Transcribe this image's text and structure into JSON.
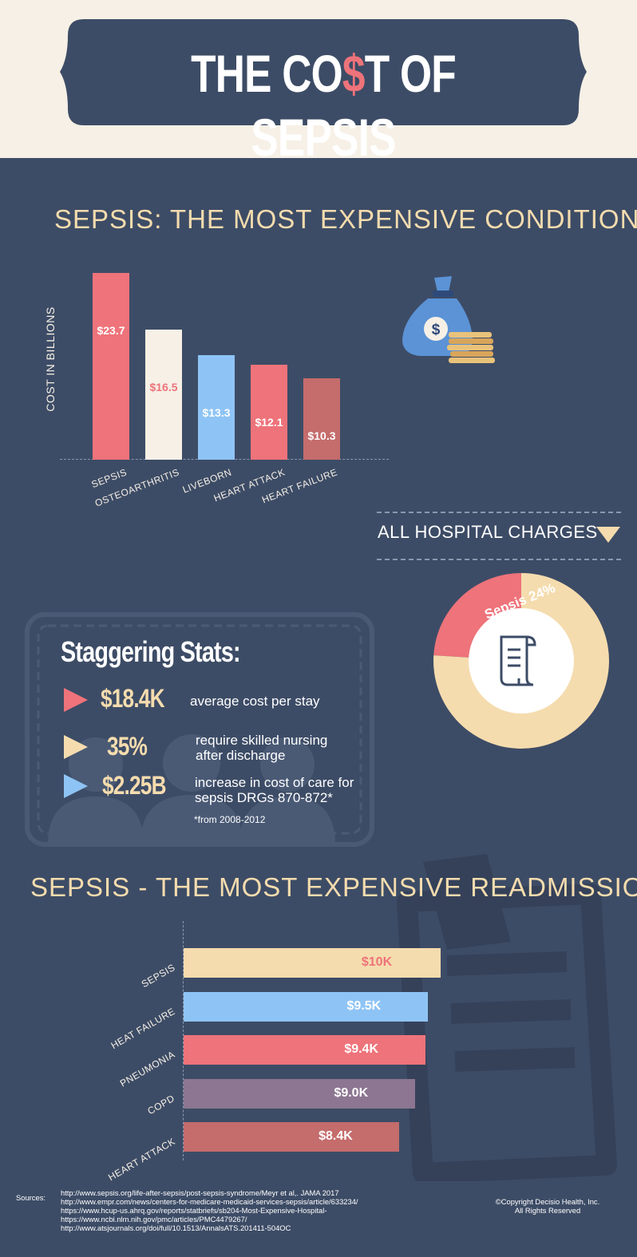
{
  "title": {
    "prefix": "THE CO",
    "symbol": "$",
    "suffix": "T OF SEPSIS"
  },
  "section_conditions": {
    "heading": "SEPSIS:  THE MOST EXPENSIVE CONDITION"
  },
  "hospital_charges": {
    "heading": "ALL HOSPITAL CHARGES"
  },
  "staggering_stats": {
    "heading": "Staggering Stats:",
    "items": [
      {
        "value": "$18.4K",
        "desc_line1": "average cost per stay",
        "desc_line2": ""
      },
      {
        "value": "35%",
        "desc_line1": "require skilled nursing",
        "desc_line2": "after discharge"
      },
      {
        "value": "$2.25B",
        "desc_line1": "increase in cost of care for",
        "desc_line2": "sepsis DRGs 870-872*"
      }
    ],
    "footnote": "*from 2008-2012"
  },
  "section_readmission": {
    "heading": "SEPSIS - THE MOST EXPENSIVE READMISSION"
  },
  "sources": {
    "label": "Sources:",
    "lines": [
      "http://www.sepsis.org/life-after-sepsis/post-sepsis-syndrome/Meyr et al,. JAMA 2017",
      "http://www.empr.com/news/centers-for-medicare-medicaid-services-sepsis/article/633234/",
      "https://www.hcup-us.ahrq.gov/reports/statbriefs/sb204-Most-Expensive-Hospital-",
      "https://www.ncbi.nlm.nih.gov/pmc/articles/PMC4479267/",
      "http://www.atsjournals.org/doi/full/10.1513/AnnalsATS.201411-504OC"
    ]
  },
  "copyright": {
    "line1": "©Copyright  Decisio Health, Inc.",
    "line2": "All Rights Reserved"
  },
  "icons": [
    "money-bag-icon",
    "coin-stack-icon",
    "receipt-icon",
    "triangle-pointer-icon",
    "people-silhouette-icon",
    "document-pen-icon"
  ],
  "colors": {
    "background": "#3d4c66",
    "cream": "#f6f0e6",
    "coral": "#ee737a",
    "light_blue": "#8ec4f5",
    "peach": "#f5dcae",
    "brick": "#c56c6c",
    "mauve": "#8c7691"
  },
  "chart_data": [
    {
      "type": "bar",
      "ylabel": "COST IN BILLIONS",
      "categories": [
        "SEPSIS",
        "OSTEOARTHRITIS",
        "LIVEBORN",
        "HEART ATTACK",
        "HEART FAILURE"
      ],
      "values": [
        23.7,
        16.5,
        13.3,
        12.1,
        10.3
      ],
      "data_labels": [
        "$23.7",
        "$16.5",
        "$13.3",
        "$12.1",
        "$10.3"
      ],
      "colors": [
        "#ee737a",
        "#f6f0e6",
        "#8ec4f5",
        "#ee737a",
        "#c56c6c"
      ],
      "label_colors": [
        "#ffffff",
        "#ee737a",
        "#ffffff",
        "#ffffff",
        "#ffffff"
      ],
      "ylim": [
        0,
        23.7
      ],
      "grid": false
    },
    {
      "type": "pie",
      "slices": [
        {
          "label": "Sepsis 24%",
          "value": 24,
          "color": "#ee737a"
        },
        {
          "label": "",
          "value": 76,
          "color": "#f5dcae"
        }
      ]
    },
    {
      "type": "bar",
      "orientation": "horizontal",
      "categories": [
        "SEPSIS",
        "HEAT FAILURE",
        "PNEUMONIA",
        "COPD",
        "HEART ATTACK"
      ],
      "values": [
        10.0,
        9.5,
        9.4,
        9.0,
        8.4
      ],
      "data_labels": [
        "$10K",
        "$9.5K",
        "$9.4K",
        "$9.0K",
        "$8.4K"
      ],
      "colors": [
        "#f5dcae",
        "#8ec4f5",
        "#ee737a",
        "#8c7691",
        "#c56c6c"
      ],
      "label_colors": [
        "#ee737a",
        "#ffffff",
        "#ffffff",
        "#ffffff",
        "#ffffff"
      ],
      "xlim": [
        0,
        10.0
      ],
      "grid": false
    }
  ]
}
